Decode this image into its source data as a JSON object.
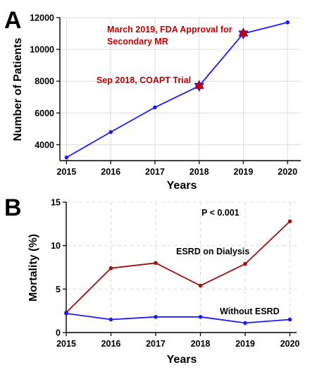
{
  "chart_data": [
    {
      "panel_label": "A",
      "type": "line",
      "xlabel": "Years",
      "ylabel": "Number of Patients",
      "x": [
        2015,
        2016,
        2017,
        2018,
        2019,
        2020
      ],
      "xlim": [
        2014.85,
        2020.3
      ],
      "ylim": [
        3000,
        12000
      ],
      "x_ticks": [
        "2015",
        "2016",
        "2017",
        "2018",
        "2019",
        "2020"
      ],
      "y_ticks": [
        "4000",
        "6000",
        "8000",
        "10000",
        "12000"
      ],
      "y_tick_values": [
        4000,
        6000,
        8000,
        10000,
        12000
      ],
      "grid": true,
      "series": [
        {
          "values": [
            3200,
            4800,
            6350,
            7700,
            11000,
            11700
          ],
          "color": "#1a1aff"
        }
      ],
      "highlight_markers": [
        {
          "x": 2018,
          "y": 7700,
          "color": "#c00000",
          "symbol": "star"
        },
        {
          "x": 2019,
          "y": 11000,
          "color": "#c00000",
          "symbol": "star"
        }
      ],
      "annotations": [
        {
          "lines": [
            "Sep 2018, COAPT Trial"
          ],
          "color": "#c00000"
        },
        {
          "lines": [
            "March 2019, FDA Approval for",
            "Secondary MR"
          ],
          "color": "#c00000"
        }
      ]
    },
    {
      "panel_label": "B",
      "type": "line",
      "xlabel": "Years",
      "ylabel": "Mortality (%)",
      "x": [
        2015,
        2016,
        2017,
        2018,
        2019,
        2020
      ],
      "xlim": [
        2015,
        2020.15
      ],
      "ylim": [
        0,
        15
      ],
      "x_ticks": [
        "2015",
        "2016",
        "2017",
        "2018",
        "2019",
        "2020"
      ],
      "y_ticks": [
        "0",
        "5",
        "10",
        "15"
      ],
      "y_tick_values": [
        0,
        5,
        10,
        15
      ],
      "grid": true,
      "series": [
        {
          "name": "ESRD on Dialysis",
          "values": [
            2.3,
            7.4,
            8.0,
            5.4,
            7.9,
            12.8
          ],
          "color": "#a01010"
        },
        {
          "name": "Without ESRD",
          "values": [
            2.2,
            1.5,
            1.8,
            1.8,
            1.1,
            1.5
          ],
          "color": "#1a1aff"
        }
      ],
      "annotations": [
        {
          "lines": [
            "P < 0.001"
          ],
          "color": "#000000"
        }
      ]
    }
  ]
}
